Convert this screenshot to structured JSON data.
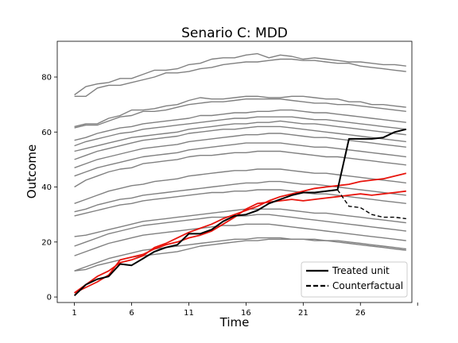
{
  "chart_data": {
    "type": "line",
    "title": "Senario C: MDD",
    "xlabel": "Time",
    "ylabel": "Outcome",
    "xlim": [
      -0.5,
      30.5
    ],
    "ylim": [
      -2,
      93
    ],
    "xticks": [
      1,
      6,
      11,
      16,
      21,
      26,
      31
    ],
    "xtick_labels": [
      "1",
      "6",
      "11",
      "16",
      "21",
      "26",
      ""
    ],
    "yticks": [
      0,
      20,
      40,
      60,
      80
    ],
    "ytick_labels": [
      "0",
      "20",
      "40",
      "60",
      "80"
    ],
    "grid": false,
    "legend": {
      "placement": "lower-right",
      "entries": [
        {
          "label": "Treated unit",
          "style": "solid",
          "color": "#000000"
        },
        {
          "label": "Counterfactual",
          "style": "dashed",
          "color": "#000000"
        }
      ]
    },
    "colors": {
      "control": "#808080",
      "synthetic": "#e8140c",
      "treated": "#000000"
    },
    "x": [
      1,
      2,
      3,
      4,
      5,
      6,
      7,
      8,
      9,
      10,
      11,
      12,
      13,
      14,
      15,
      16,
      17,
      18,
      19,
      20,
      21,
      22,
      23,
      24,
      25,
      26,
      27,
      28,
      29,
      30
    ],
    "series": [
      {
        "role": "control",
        "values": [
          73.5,
          76.5,
          77.5,
          78,
          79.5,
          79.5,
          81,
          82.5,
          82.5,
          83,
          84.5,
          85,
          86.5,
          87,
          87,
          88,
          88.5,
          87,
          88,
          87.5,
          86.5,
          87,
          86.5,
          86,
          85.5,
          85.5,
          85,
          84.5,
          84.5,
          84
        ]
      },
      {
        "role": "control",
        "values": [
          73,
          73,
          76,
          77,
          77,
          78,
          79,
          80,
          81.5,
          81.5,
          82,
          83,
          83.5,
          84.5,
          85,
          85.5,
          85.5,
          86,
          86.5,
          86.5,
          86,
          86,
          85.5,
          85,
          85,
          84,
          83.5,
          83,
          82.5,
          82
        ]
      },
      {
        "role": "control",
        "values": [
          62,
          63,
          63,
          65,
          66,
          68,
          68,
          68.5,
          69.5,
          70,
          71.5,
          72.5,
          72,
          72,
          72.5,
          73,
          73,
          72.5,
          72.5,
          73,
          73,
          72.5,
          72,
          72,
          71,
          71,
          70,
          70,
          69.5,
          69
        ]
      },
      {
        "role": "control",
        "values": [
          61.5,
          62.5,
          62.5,
          64,
          65.5,
          66,
          67.5,
          67.5,
          68,
          69,
          70,
          70.5,
          71,
          71,
          71.5,
          72,
          72,
          72,
          72,
          71.5,
          71,
          70.5,
          70.5,
          70,
          70,
          69.5,
          69,
          68.5,
          68,
          67.5
        ]
      },
      {
        "role": "control",
        "values": [
          57,
          58,
          59.5,
          60.5,
          61.5,
          62,
          63,
          63.5,
          64,
          64.5,
          65,
          66,
          66,
          66.5,
          67,
          67,
          67.5,
          67.5,
          68,
          68,
          67.5,
          67,
          67,
          66.5,
          66,
          65.5,
          65,
          64.5,
          64,
          63.5
        ]
      },
      {
        "role": "control",
        "values": [
          55,
          56.5,
          57.5,
          58.5,
          59.5,
          60,
          61,
          61.5,
          62,
          62.5,
          63,
          63.5,
          64,
          64.5,
          65,
          65,
          65.5,
          65.5,
          65.5,
          65.5,
          65,
          64.5,
          64.5,
          64,
          63.5,
          63,
          62.5,
          62,
          61.5,
          61
        ]
      },
      {
        "role": "control",
        "values": [
          53,
          54,
          55,
          56,
          57,
          58,
          58.5,
          59,
          59.5,
          60,
          61,
          61.5,
          62,
          62.5,
          63,
          63,
          63.5,
          63.5,
          64,
          63.5,
          63,
          63,
          62.5,
          62,
          61.5,
          61,
          60.5,
          60,
          59.5,
          59
        ]
      },
      {
        "role": "control",
        "values": [
          50,
          51.5,
          53,
          54,
          55,
          56,
          57,
          57.5,
          58,
          58.5,
          59.5,
          60,
          60.5,
          61,
          61,
          61.5,
          62,
          62,
          62,
          61.5,
          61,
          60.5,
          60,
          59.5,
          59,
          58.5,
          58,
          57.5,
          57,
          56.5
        ]
      },
      {
        "role": "control",
        "values": [
          47,
          48.5,
          50,
          51,
          52,
          53,
          54,
          54.5,
          55,
          55.5,
          56.5,
          57,
          57.5,
          58,
          58.5,
          59,
          59,
          59.5,
          59.5,
          59,
          58.5,
          58,
          58,
          57.5,
          57,
          56.5,
          56,
          55.5,
          55,
          54.5
        ]
      },
      {
        "role": "control",
        "values": [
          44,
          45.5,
          47,
          48,
          49,
          50,
          51,
          51.5,
          52,
          52.5,
          53.5,
          54,
          54.5,
          55,
          55.5,
          56,
          56,
          56,
          56,
          55.5,
          55,
          54.5,
          54.5,
          54,
          53.5,
          53,
          52.5,
          52,
          51.5,
          51
        ]
      },
      {
        "role": "control",
        "values": [
          40,
          42.5,
          44,
          45.5,
          46.5,
          47,
          48.5,
          49,
          49.5,
          50,
          51,
          51.5,
          51.5,
          52,
          52.5,
          52.5,
          53,
          53,
          53,
          52.5,
          52,
          51.5,
          51,
          51,
          50.5,
          50,
          49.5,
          49,
          48.5,
          48
        ]
      },
      {
        "role": "control",
        "values": [
          34,
          35.5,
          37,
          38.5,
          39.5,
          40.5,
          41,
          42,
          42.5,
          43,
          44,
          44.5,
          45,
          45.5,
          46,
          46,
          46.5,
          46.5,
          46.5,
          46,
          45.5,
          45,
          45,
          44.5,
          44,
          43.5,
          43,
          42.5,
          42,
          41.5
        ]
      },
      {
        "role": "control",
        "values": [
          31,
          32,
          33.5,
          34.5,
          35.5,
          36,
          37,
          37.5,
          38,
          38.5,
          39,
          39.5,
          40,
          40.5,
          41,
          41.5,
          41.5,
          42,
          42,
          41.5,
          41,
          41,
          40.5,
          40,
          39.5,
          39,
          38.5,
          38,
          37.5,
          37
        ]
      },
      {
        "role": "control",
        "values": [
          29.5,
          30.5,
          31.5,
          32.5,
          33.5,
          34,
          35,
          35.5,
          36,
          36.5,
          37,
          37.5,
          38,
          38,
          38.5,
          38.5,
          39,
          39,
          39,
          38.5,
          38,
          37.5,
          37.5,
          37,
          36.5,
          36,
          35.5,
          35,
          34.5,
          34
        ]
      },
      {
        "role": "control",
        "values": [
          22,
          22.5,
          23.5,
          24.5,
          25.5,
          26.5,
          27.5,
          28,
          28.5,
          29,
          29.5,
          30,
          30.5,
          31,
          31.5,
          32,
          32,
          32,
          32,
          31.5,
          31,
          30.5,
          30.5,
          30,
          29.5,
          29,
          28.5,
          28,
          27.5,
          27
        ]
      },
      {
        "role": "control",
        "values": [
          18.5,
          20,
          21.5,
          23,
          24,
          25,
          26,
          26.5,
          27,
          27.5,
          28,
          28.5,
          29,
          29,
          29.5,
          29.5,
          30,
          30,
          29.5,
          29,
          28.5,
          28,
          27.5,
          27,
          26.5,
          26,
          25.5,
          25,
          24.5,
          24
        ]
      },
      {
        "role": "control",
        "values": [
          15,
          16.5,
          18,
          19.5,
          20.5,
          21.5,
          22.5,
          23,
          23.5,
          24,
          24.5,
          25,
          25.5,
          26,
          26,
          26.5,
          26.5,
          26.5,
          26,
          25.5,
          25,
          24.5,
          24,
          23.5,
          23,
          22.5,
          22,
          21.5,
          21,
          20.5
        ]
      },
      {
        "role": "control",
        "values": [
          9.5,
          11,
          12.5,
          14,
          15,
          16,
          17,
          17.5,
          18,
          18.5,
          19,
          19.5,
          20,
          20.5,
          21,
          21,
          21.5,
          21.5,
          21.5,
          21,
          21,
          20.5,
          20.5,
          20,
          19.5,
          19,
          18.5,
          18,
          17.5,
          17
        ]
      },
      {
        "role": "control",
        "values": [
          9.5,
          10,
          11.5,
          12.5,
          13.5,
          14.5,
          15,
          15.5,
          16,
          16.5,
          17.5,
          18.5,
          19,
          19.5,
          20,
          20.5,
          20.5,
          21,
          21,
          21,
          21,
          21,
          20.5,
          20.5,
          20,
          19.5,
          19,
          18.5,
          18,
          17.5
        ]
      },
      {
        "role": "synthetic",
        "values": [
          1.5,
          4.5,
          7.5,
          9.5,
          12.5,
          13.5,
          15,
          18,
          19.5,
          21.5,
          23.5,
          25,
          26.5,
          28.5,
          30,
          31.5,
          33,
          35,
          36.5,
          37.5,
          38.5,
          39.5,
          40,
          40.5,
          41,
          42,
          42.5,
          43,
          44,
          45
        ]
      },
      {
        "role": "synthetic",
        "values": [
          1.5,
          3.5,
          5.5,
          8,
          13.5,
          14.5,
          15.5,
          17.5,
          19,
          20,
          21.5,
          22.5,
          24,
          26.5,
          29,
          32,
          34,
          34.5,
          35,
          35.5,
          35,
          35.5,
          36,
          36.5,
          37,
          37.5,
          37,
          37.5,
          38,
          38.5
        ]
      },
      {
        "role": "treated",
        "values": [
          0.5,
          4.5,
          6.5,
          7.5,
          12,
          11.5,
          14,
          16.5,
          18,
          19,
          23,
          23,
          24.5,
          27.5,
          29.5,
          30,
          31.5,
          34,
          35.5,
          37,
          38,
          38,
          38.5,
          39,
          57.5,
          57.5,
          57.5,
          58,
          60,
          61
        ]
      },
      {
        "role": "counterfactual",
        "values": [
          null,
          null,
          null,
          null,
          null,
          null,
          null,
          null,
          null,
          null,
          null,
          null,
          null,
          null,
          null,
          null,
          null,
          null,
          null,
          null,
          null,
          null,
          null,
          39,
          33,
          32.5,
          30,
          29,
          29,
          28.5
        ]
      }
    ]
  }
}
